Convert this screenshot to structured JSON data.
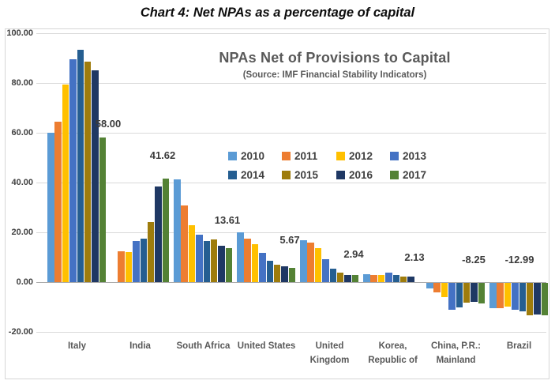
{
  "page_title": "Chart 4: Net NPAs as a percentage of capital",
  "chart_data": {
    "type": "bar",
    "title": "NPAs Net of Provisions to Capital",
    "subtitle": "(Source: IMF Financial Stability Indicators)",
    "xlabel": "",
    "ylabel": "",
    "ylim": [
      -20,
      100
    ],
    "grid": true,
    "legend_position": "inside top-center, two rows",
    "yticks": [
      {
        "label": "100.00",
        "value": 100
      },
      {
        "label": "80.00",
        "value": 80
      },
      {
        "label": "60.00",
        "value": 60
      },
      {
        "label": "40.00",
        "value": 40
      },
      {
        "label": "20.00",
        "value": 20
      },
      {
        "label": "0.00",
        "value": 0
      },
      {
        "label": "-20.00",
        "value": -20
      }
    ],
    "categories": [
      "Italy",
      "India",
      "South Africa",
      "United States",
      "United Kingdom",
      "Korea, Republic of",
      "China, P.R.: Mainland",
      "Brazil"
    ],
    "category_label_lines": [
      [
        "Italy"
      ],
      [
        "India"
      ],
      [
        "South Africa"
      ],
      [
        "United States"
      ],
      [
        "United",
        "Kingdom"
      ],
      [
        "Korea,",
        "Republic of"
      ],
      [
        "China, P.R.:",
        "Mainland"
      ],
      [
        "Brazil"
      ]
    ],
    "series": [
      {
        "name": "2010",
        "color": "#5B9BD5",
        "values": [
          60.0,
          null,
          41.2,
          20.0,
          16.9,
          3.2,
          -2.2,
          -10.3
        ]
      },
      {
        "name": "2011",
        "color": "#ED7D31",
        "values": [
          64.5,
          12.4,
          30.8,
          17.5,
          16.0,
          2.8,
          -3.8,
          -10.1
        ]
      },
      {
        "name": "2012",
        "color": "#FFC000",
        "values": [
          79.5,
          12.2,
          22.9,
          15.2,
          13.8,
          3.0,
          -5.6,
          -9.4
        ]
      },
      {
        "name": "2013",
        "color": "#4472C4",
        "values": [
          89.5,
          16.6,
          19.0,
          11.6,
          9.3,
          3.9,
          -10.9,
          -10.9
        ]
      },
      {
        "name": "2014",
        "color": "#255E91",
        "values": [
          93.4,
          17.4,
          16.5,
          8.7,
          5.4,
          2.9,
          -9.8,
          -11.4
        ]
      },
      {
        "name": "2015",
        "color": "#9E7C0C",
        "values": [
          88.6,
          24.0,
          17.0,
          7.0,
          3.9,
          2.2,
          -8.0,
          -12.9
        ]
      },
      {
        "name": "2016",
        "color": "#1F3864",
        "values": [
          85.0,
          38.5,
          14.7,
          6.4,
          3.0,
          2.13,
          -7.5,
          -12.6
        ]
      },
      {
        "name": "2017",
        "color": "#548235",
        "values": [
          58.0,
          41.62,
          13.61,
          5.67,
          2.94,
          null,
          -8.25,
          -12.99
        ]
      }
    ],
    "value_labels": [
      "58.00",
      "41.62",
      "13.61",
      "5.67",
      "2.94",
      "2.13",
      "-8.25",
      "-12.99"
    ]
  }
}
